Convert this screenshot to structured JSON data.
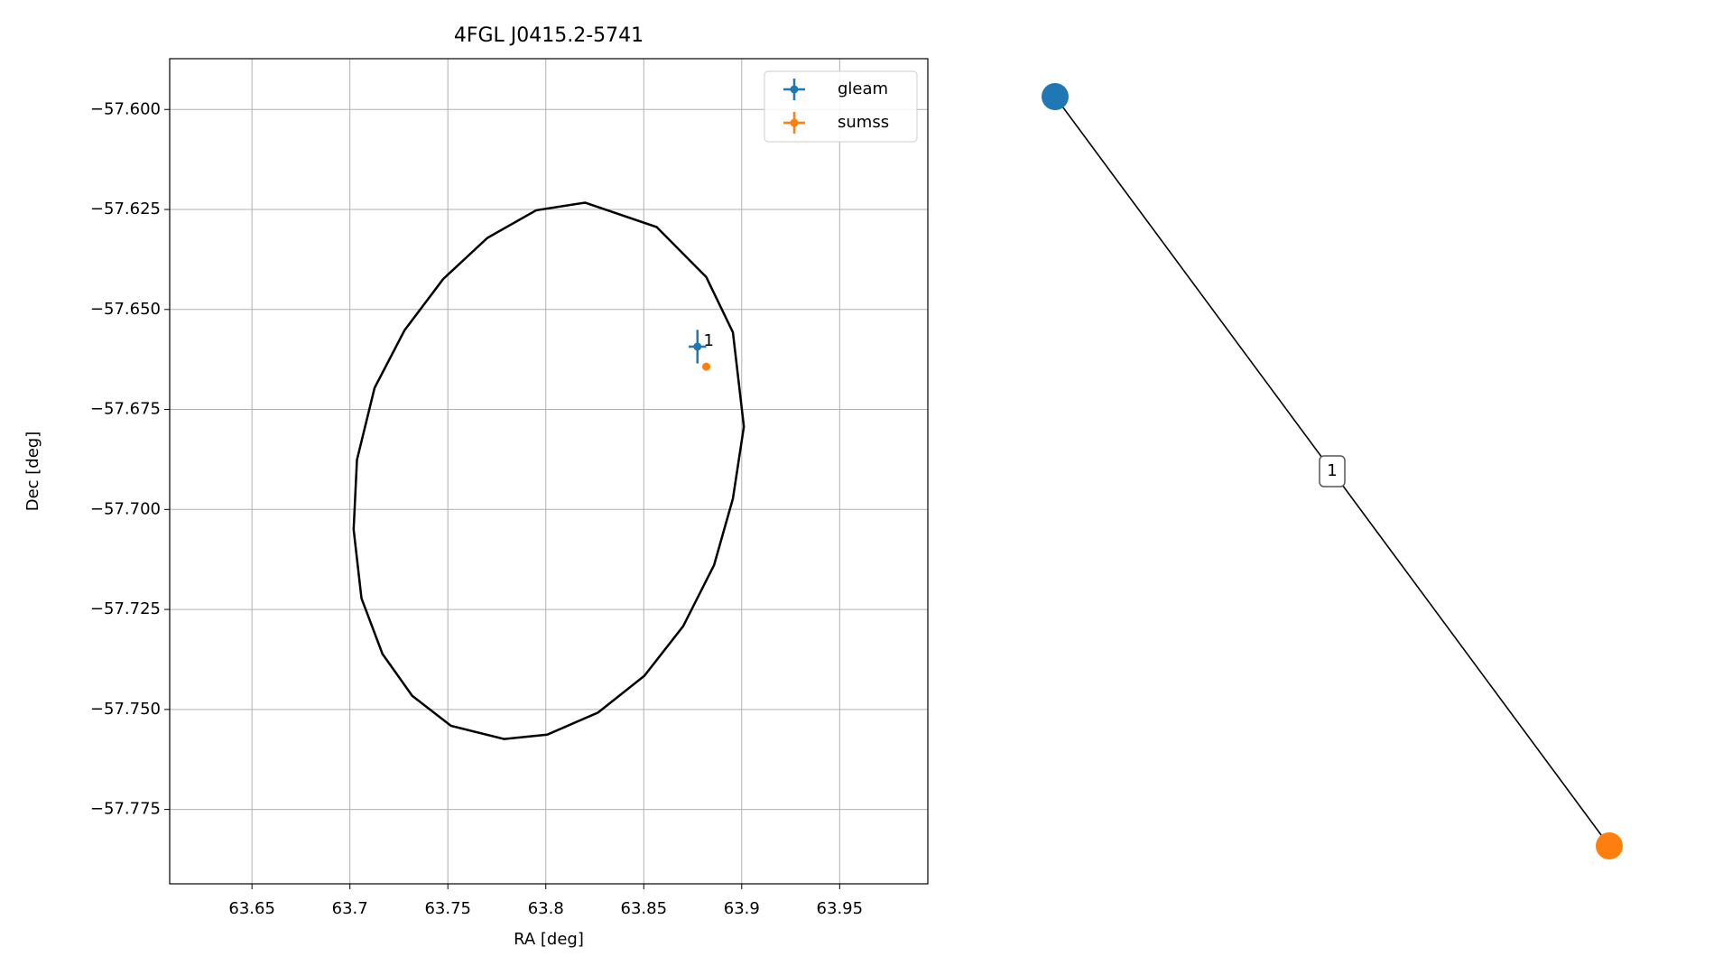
{
  "chart_data": [
    {
      "type": "scatter",
      "title": "4FGL J0415.2-5741",
      "x_label": "RA [deg]",
      "y_label": "Dec [deg]",
      "xlim": [
        63.608,
        63.995
      ],
      "ylim": [
        -57.7936,
        -57.5873
      ],
      "xticks": [
        63.65,
        63.7,
        {
          "value": 63.75,
          "label": "63.75"
        },
        63.8,
        63.85,
        63.9,
        63.95
      ],
      "yticks": [
        {
          "value": -57.6,
          "label": "−57.600"
        },
        {
          "value": -57.625,
          "label": "−57.625"
        },
        {
          "value": -57.65,
          "label": "−57.650"
        },
        {
          "value": -57.675,
          "label": "−57.675"
        },
        {
          "value": -57.7,
          "label": "−57.700"
        },
        {
          "value": -57.725,
          "label": "−57.725"
        },
        {
          "value": -57.75,
          "label": "−57.750"
        },
        {
          "value": -57.775,
          "label": "−57.775"
        }
      ],
      "grid": true,
      "legend": "upper right",
      "series": [
        {
          "name": "gleam",
          "color": "#1f77b4",
          "x": [
            63.8774
          ],
          "values": [
            -57.6593
          ],
          "x_err": [
            0.0045
          ],
          "y_err": [
            0.0042
          ]
        },
        {
          "name": "sumss",
          "color": "#ff7f0e",
          "x": [
            63.8819
          ],
          "values": [
            -57.6643
          ],
          "x_err": [
            0.0003
          ],
          "y_err": [
            0.0003
          ]
        }
      ],
      "annotations": [
        {
          "text": "1",
          "x": 63.8805,
          "y": -57.658
        }
      ],
      "ellipse": {
        "color": "#000000",
        "x": [
          63.82,
          63.8566,
          63.8819,
          63.8955,
          63.9011,
          63.8955,
          63.8859,
          63.8701,
          63.8503,
          63.8266,
          63.8007,
          63.7787,
          63.7516,
          63.7318,
          63.7166,
          63.7059,
          63.7019,
          63.7036,
          63.7126,
          63.7279,
          63.7476,
          63.7702,
          63.7951
        ],
        "y": [
          -57.6233,
          -57.6294,
          -57.6419,
          -57.6557,
          -57.6793,
          -57.6973,
          -57.7139,
          -57.7292,
          -57.7416,
          -57.7508,
          -57.7563,
          -57.7574,
          -57.7541,
          -57.7466,
          -57.7361,
          -57.7222,
          -57.705,
          -57.6876,
          -57.6696,
          -57.6552,
          -57.6424,
          -57.6321,
          -57.6252
        ]
      }
    },
    {
      "type": "graph",
      "nodes": [
        {
          "color": "#1f77b4"
        },
        {
          "color": "#ff7f0e"
        }
      ],
      "edges": [
        {
          "source": 0,
          "target": 1,
          "label": "1"
        }
      ]
    }
  ]
}
